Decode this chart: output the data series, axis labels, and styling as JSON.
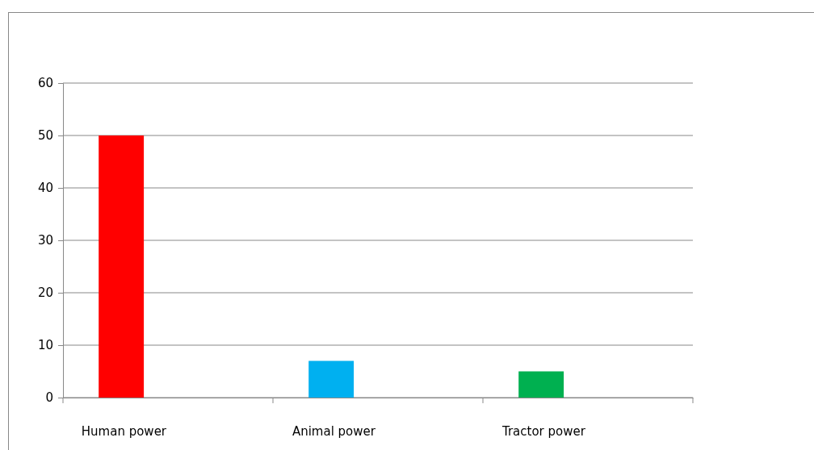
{
  "chart_data": {
    "type": "bar",
    "categories": [
      "Human power",
      "Animal power",
      "Tractor power"
    ],
    "values": [
      50,
      7,
      5
    ],
    "colors": [
      "#ff0000",
      "#00b0f0",
      "#00b050"
    ],
    "ylim": [
      0,
      60
    ],
    "yticks": [
      0,
      10,
      20,
      30,
      40,
      50,
      60
    ],
    "grid": "y"
  }
}
